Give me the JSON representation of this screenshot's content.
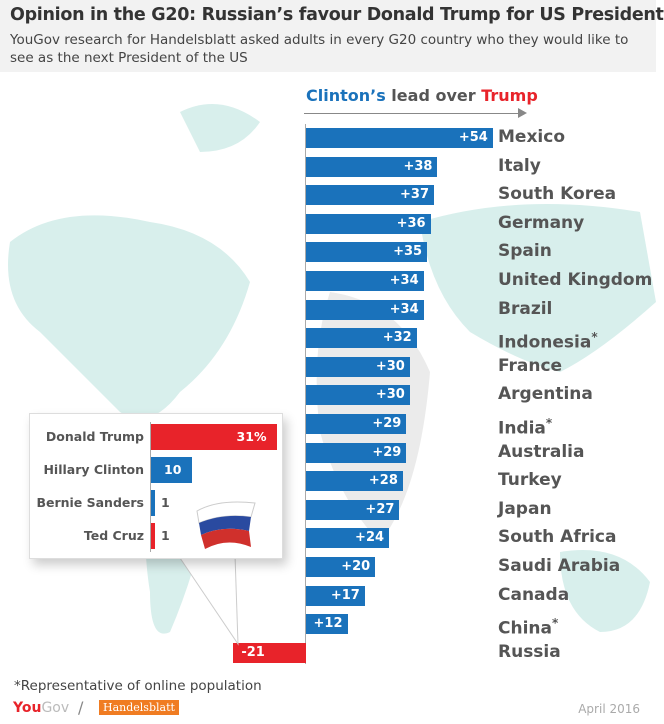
{
  "header": {
    "title": "Opinion in the G20: Russian’s favour Donald Trump for US President",
    "subtitle": "YouGov research for Handelsblatt asked adults in every G20 country who they would like to see as the next President of the US"
  },
  "chart_data": {
    "type": "bar",
    "orientation": "horizontal",
    "title_parts": {
      "a": "Clinton’s",
      "b": " lead over ",
      "c": "Trump"
    },
    "categories": [
      "Mexico",
      "Italy",
      "South Korea",
      "Germany",
      "Spain",
      "United Kingdom",
      "Brazil",
      "Indonesia",
      "France",
      "Argentina",
      "India",
      "Australia",
      "Turkey",
      "Japan",
      "South Africa",
      "Saudi Arabia",
      "Canada",
      "China",
      "Russia"
    ],
    "asterisk": [
      false,
      false,
      false,
      false,
      false,
      false,
      false,
      true,
      false,
      false,
      true,
      false,
      false,
      false,
      false,
      false,
      false,
      true,
      false
    ],
    "values": [
      54,
      38,
      37,
      36,
      35,
      34,
      34,
      32,
      30,
      30,
      29,
      29,
      28,
      27,
      24,
      20,
      17,
      12,
      -21
    ],
    "labels": [
      "+54",
      "+38",
      "+37",
      "+36",
      "+35",
      "+34",
      "+34",
      "+32",
      "+30",
      "+30",
      "+29",
      "+29",
      "+28",
      "+27",
      "+24",
      "+20",
      "+17",
      "+12",
      "-21"
    ],
    "colors": {
      "positive": "#1a72bb",
      "negative": "#e8232a"
    }
  },
  "inset": {
    "categories": [
      "Donald Trump",
      "Hillary Clinton",
      "Bernie Sanders",
      "Ted Cruz"
    ],
    "values": [
      31,
      10,
      1,
      1
    ],
    "labels": [
      "31%",
      "10",
      "1",
      "1"
    ],
    "colors": [
      "#e8232a",
      "#1a72bb",
      "#1a72bb",
      "#e8232a"
    ]
  },
  "footer": {
    "note": "*Representative of online population",
    "yougov_a": "You",
    "yougov_b": "Gov",
    "slash": "/",
    "handelsblatt": "Handelsblatt",
    "date": "April 2016"
  }
}
